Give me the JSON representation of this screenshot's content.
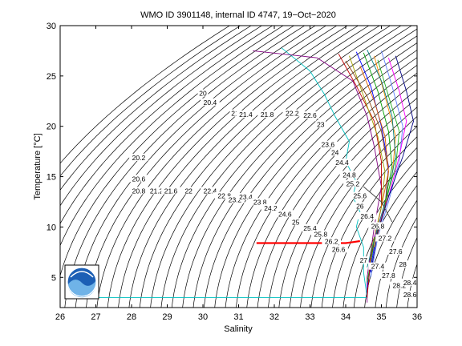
{
  "chart_data": {
    "type": "line",
    "title": "WMO ID 3901148, internal ID 4747, 19−Oct−2020",
    "xlabel": "Salinity",
    "ylabel": "Temperature [°C]",
    "xlim": [
      26,
      36
    ],
    "ylim": [
      2,
      30
    ],
    "x_ticks": [
      26,
      27,
      28,
      29,
      30,
      31,
      32,
      33,
      34,
      35,
      36
    ],
    "y_ticks": [
      5,
      10,
      15,
      20,
      25,
      30
    ],
    "grid": false,
    "isopycnal_labels": [
      {
        "text": "20",
        "s": 30.0,
        "t": 23.2
      },
      {
        "text": "20.4",
        "s": 30.2,
        "t": 22.3
      },
      {
        "text": "21",
        "s": 30.9,
        "t": 21.2
      },
      {
        "text": "21.4",
        "s": 31.2,
        "t": 21.1
      },
      {
        "text": "21.8",
        "s": 31.8,
        "t": 21.1
      },
      {
        "text": "22.2",
        "s": 32.5,
        "t": 21.2
      },
      {
        "text": "22.6",
        "s": 33.0,
        "t": 21.0
      },
      {
        "text": "23",
        "s": 33.3,
        "t": 20.1
      },
      {
        "text": "20.2",
        "s": 28.2,
        "t": 16.8
      },
      {
        "text": "20.6",
        "s": 28.2,
        "t": 14.7
      },
      {
        "text": "20.8",
        "s": 28.2,
        "t": 13.5
      },
      {
        "text": "21.2",
        "s": 28.7,
        "t": 13.5
      },
      {
        "text": "21.6",
        "s": 29.1,
        "t": 13.5
      },
      {
        "text": "22",
        "s": 29.6,
        "t": 13.5
      },
      {
        "text": "22.4",
        "s": 30.2,
        "t": 13.5
      },
      {
        "text": "22.8",
        "s": 30.6,
        "t": 13.0
      },
      {
        "text": "23.2",
        "s": 30.9,
        "t": 12.6
      },
      {
        "text": "23.4",
        "s": 31.2,
        "t": 12.9
      },
      {
        "text": "23.8",
        "s": 31.6,
        "t": 12.4
      },
      {
        "text": "24.2",
        "s": 31.9,
        "t": 11.8
      },
      {
        "text": "24.6",
        "s": 32.3,
        "t": 11.2
      },
      {
        "text": "25",
        "s": 32.6,
        "t": 10.4
      },
      {
        "text": "25.4",
        "s": 33.0,
        "t": 9.8
      },
      {
        "text": "25.8",
        "s": 33.3,
        "t": 9.2
      },
      {
        "text": "26.2",
        "s": 33.6,
        "t": 8.5
      },
      {
        "text": "26.6",
        "s": 33.8,
        "t": 7.7
      },
      {
        "text": "23.6",
        "s": 33.5,
        "t": 18.1
      },
      {
        "text": "24",
        "s": 33.7,
        "t": 17.3
      },
      {
        "text": "24.4",
        "s": 33.9,
        "t": 16.3
      },
      {
        "text": "24.8",
        "s": 34.1,
        "t": 15.1
      },
      {
        "text": "25.2",
        "s": 34.2,
        "t": 14.2
      },
      {
        "text": "25.6",
        "s": 34.4,
        "t": 13.0
      },
      {
        "text": "26",
        "s": 34.4,
        "t": 12.0
      },
      {
        "text": "26.4",
        "s": 34.6,
        "t": 11.0
      },
      {
        "text": "26.8",
        "s": 34.9,
        "t": 10.0
      },
      {
        "text": "27.2",
        "s": 35.1,
        "t": 8.8
      },
      {
        "text": "27.6",
        "s": 35.4,
        "t": 7.5
      },
      {
        "text": "28",
        "s": 35.6,
        "t": 6.2
      },
      {
        "text": "27.4",
        "s": 34.9,
        "t": 6.0
      },
      {
        "text": "27.8",
        "s": 35.2,
        "t": 5.1
      },
      {
        "text": "28.2",
        "s": 35.5,
        "t": 4.1
      },
      {
        "text": "28.4",
        "s": 35.8,
        "t": 4.4
      },
      {
        "text": "28.6",
        "s": 35.8,
        "t": 3.2
      },
      {
        "text": "27",
        "s": 34.5,
        "t": 6.6
      }
    ],
    "series": [
      {
        "color": "#00c0c0",
        "points": [
          [
            32.2,
            27.8
          ],
          [
            33.0,
            25.5
          ],
          [
            33.4,
            23.2
          ],
          [
            33.7,
            21.0
          ],
          [
            34.1,
            18.5
          ],
          [
            34.0,
            16.5
          ],
          [
            34.3,
            14.5
          ],
          [
            34.2,
            13.0
          ],
          [
            34.4,
            11.5
          ],
          [
            34.3,
            10.0
          ],
          [
            34.5,
            8.0
          ],
          [
            34.5,
            5.5
          ],
          [
            34.6,
            3.0
          ],
          [
            27.0,
            3.0
          ]
        ]
      },
      {
        "color": "#ff0000",
        "points": [
          [
            31.5,
            8.4
          ],
          [
            34.0,
            8.4
          ],
          [
            34.2,
            8.5
          ],
          [
            34.4,
            8.6
          ]
        ]
      },
      {
        "color": "#800080",
        "points": [
          [
            31.4,
            27.5
          ],
          [
            33.2,
            26.8
          ],
          [
            34.2,
            24.5
          ],
          [
            34.6,
            21.0
          ],
          [
            34.8,
            18.0
          ],
          [
            35.0,
            14.0
          ],
          [
            34.8,
            10.0
          ],
          [
            34.6,
            5.0
          ],
          [
            34.6,
            2.5
          ]
        ]
      },
      {
        "color": "#0000ff",
        "points": [
          [
            34.3,
            27.4
          ],
          [
            34.7,
            24.0
          ],
          [
            35.0,
            20.0
          ],
          [
            35.2,
            16.0
          ],
          [
            35.1,
            12.0
          ],
          [
            34.8,
            8.0
          ],
          [
            34.6,
            4.0
          ]
        ]
      },
      {
        "color": "#00a000",
        "points": [
          [
            34.5,
            27.3
          ],
          [
            34.9,
            23.5
          ],
          [
            35.2,
            19.5
          ],
          [
            35.3,
            16.0
          ],
          [
            35.1,
            12.5
          ],
          [
            34.8,
            8.5
          ],
          [
            34.6,
            4.5
          ]
        ]
      },
      {
        "color": "#ff8c00",
        "points": [
          [
            34.8,
            27.0
          ],
          [
            35.1,
            23.0
          ],
          [
            35.4,
            19.0
          ],
          [
            35.3,
            15.0
          ],
          [
            35.1,
            12.0
          ],
          [
            34.8,
            8.0
          ]
        ]
      },
      {
        "color": "#c00000",
        "points": [
          [
            33.8,
            27.2
          ],
          [
            34.3,
            24.0
          ],
          [
            34.8,
            20.5
          ],
          [
            35.0,
            16.5
          ],
          [
            35.0,
            12.0
          ],
          [
            34.7,
            7.0
          ],
          [
            34.6,
            3.0
          ]
        ]
      },
      {
        "color": "#6080ff",
        "points": [
          [
            35.0,
            27.5
          ],
          [
            35.3,
            24.0
          ],
          [
            35.6,
            20.0
          ],
          [
            35.5,
            16.5
          ],
          [
            35.2,
            12.5
          ],
          [
            34.9,
            9.0
          ],
          [
            34.7,
            5.0
          ]
        ]
      },
      {
        "color": "#a0a000",
        "points": [
          [
            34.1,
            27.0
          ],
          [
            34.5,
            23.0
          ],
          [
            34.9,
            19.0
          ],
          [
            35.1,
            15.5
          ],
          [
            35.0,
            12.0
          ],
          [
            34.7,
            7.5
          ]
        ]
      },
      {
        "color": "#ff00ff",
        "points": [
          [
            35.2,
            26.8
          ],
          [
            35.5,
            23.5
          ],
          [
            35.7,
            20.5
          ],
          [
            35.5,
            17.0
          ],
          [
            35.2,
            13.0
          ],
          [
            34.8,
            9.0
          ]
        ]
      },
      {
        "color": "#008080",
        "points": [
          [
            34.6,
            27.6
          ],
          [
            35.0,
            24.5
          ],
          [
            35.3,
            21.0
          ],
          [
            35.4,
            17.0
          ],
          [
            35.2,
            13.5
          ],
          [
            34.9,
            10.0
          ],
          [
            34.6,
            6.0
          ]
        ]
      },
      {
        "color": "#8b4513",
        "points": [
          [
            34.0,
            26.5
          ],
          [
            34.6,
            23.0
          ],
          [
            35.0,
            19.5
          ],
          [
            35.2,
            15.5
          ],
          [
            35.1,
            12.0
          ],
          [
            34.8,
            8.5
          ]
        ]
      },
      {
        "color": "#000080",
        "points": [
          [
            35.4,
            27.0
          ],
          [
            35.7,
            23.5
          ],
          [
            35.9,
            20.5
          ],
          [
            35.6,
            17.0
          ],
          [
            35.2,
            13.0
          ],
          [
            34.9,
            9.5
          ],
          [
            34.7,
            5.5
          ]
        ]
      },
      {
        "color": "#20b020",
        "points": [
          [
            34.9,
            26.6
          ],
          [
            35.2,
            23.0
          ],
          [
            35.5,
            19.5
          ],
          [
            35.4,
            16.0
          ],
          [
            35.1,
            12.5
          ]
        ]
      },
      {
        "color": "#e06000",
        "points": [
          [
            34.4,
            26.0
          ],
          [
            34.8,
            22.5
          ],
          [
            35.1,
            19.0
          ],
          [
            35.2,
            15.5
          ],
          [
            35.0,
            12.0
          ]
        ]
      },
      {
        "color": "#404040",
        "points": [
          [
            34.5,
            14.0
          ],
          [
            35.0,
            12.5
          ],
          [
            35.3,
            10.5
          ]
        ]
      }
    ]
  }
}
